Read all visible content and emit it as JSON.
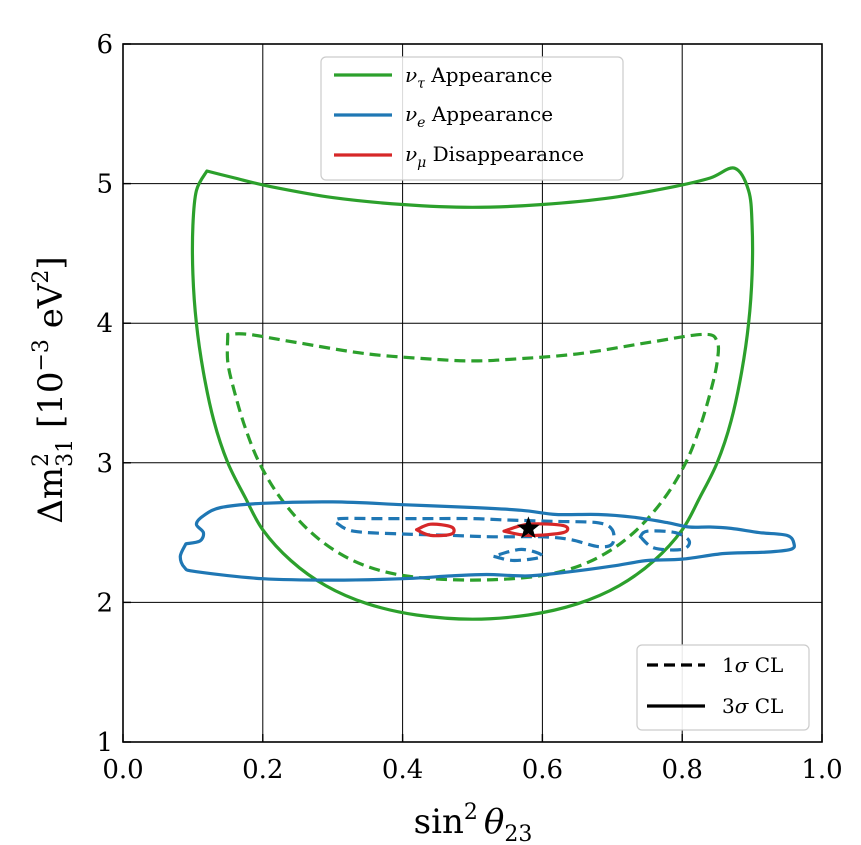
{
  "chart_data": {
    "type": "contour",
    "title": "",
    "xlabel_prefix": "sin",
    "xlabel_sup": "2",
    "xlabel_symbol": "θ",
    "xlabel_sub": "23",
    "ylabel_prefix": "Δm",
    "ylabel_sup": "2",
    "ylabel_sub": "31",
    "ylabel_unit_open": " [10",
    "ylabel_unit_exp": "−3",
    "ylabel_unit_mid": " eV",
    "ylabel_unit_sup": "2",
    "ylabel_unit_close": "]",
    "xlim": [
      0.0,
      1.0
    ],
    "ylim": [
      1,
      6
    ],
    "xticks": [
      0.0,
      0.2,
      0.4,
      0.6,
      0.8,
      1.0
    ],
    "xtick_labels": [
      "0.0",
      "0.2",
      "0.4",
      "0.6",
      "0.8",
      "1.0"
    ],
    "yticks": [
      1,
      2,
      3,
      4,
      5,
      6
    ],
    "ytick_labels": [
      "1",
      "2",
      "3",
      "4",
      "5",
      "6"
    ],
    "grid": true,
    "colors": {
      "tau": "#2ca02c",
      "e": "#1f77b4",
      "mu": "#d62728",
      "cl": "#000000"
    },
    "legend_samples": {
      "symbol_tau": "ν",
      "sub_tau": "τ",
      "label_tau": " Appearance",
      "symbol_e": "ν",
      "sub_e": "e",
      "label_e": " Appearance",
      "symbol_mu": "ν",
      "sub_mu": "μ",
      "label_mu": " Disappearance"
    },
    "legend_cl": {
      "one_num": "1",
      "one_sigma": "σ",
      "one_text": " CL",
      "three_num": "3",
      "three_sigma": "σ",
      "three_text": " CL"
    },
    "legend_samples_position": "top-center",
    "legend_cl_position": "bottom-right",
    "best_fit": {
      "x": 0.58,
      "y": 2.53,
      "marker": "star"
    },
    "series": [
      {
        "name": "nu_tau_3sigma",
        "color_key": "tau",
        "style": "solid",
        "points": [
          [
            0.12,
            5.09
          ],
          [
            0.105,
            4.95
          ],
          [
            0.1,
            4.7
          ],
          [
            0.1,
            4.35
          ],
          [
            0.105,
            4.0
          ],
          [
            0.115,
            3.65
          ],
          [
            0.13,
            3.3
          ],
          [
            0.15,
            3.0
          ],
          [
            0.175,
            2.75
          ],
          [
            0.2,
            2.52
          ],
          [
            0.24,
            2.3
          ],
          [
            0.29,
            2.12
          ],
          [
            0.35,
            1.99
          ],
          [
            0.42,
            1.91
          ],
          [
            0.5,
            1.88
          ],
          [
            0.58,
            1.91
          ],
          [
            0.65,
            1.99
          ],
          [
            0.71,
            2.12
          ],
          [
            0.76,
            2.3
          ],
          [
            0.8,
            2.52
          ],
          [
            0.825,
            2.75
          ],
          [
            0.85,
            3.0
          ],
          [
            0.87,
            3.3
          ],
          [
            0.885,
            3.65
          ],
          [
            0.895,
            4.0
          ],
          [
            0.9,
            4.35
          ],
          [
            0.9,
            4.7
          ],
          [
            0.895,
            4.95
          ],
          [
            0.875,
            5.11
          ],
          [
            0.84,
            5.04
          ],
          [
            0.79,
            4.98
          ],
          [
            0.7,
            4.9
          ],
          [
            0.6,
            4.85
          ],
          [
            0.5,
            4.83
          ],
          [
            0.4,
            4.85
          ],
          [
            0.3,
            4.9
          ],
          [
            0.21,
            4.98
          ],
          [
            0.16,
            5.04
          ],
          [
            0.12,
            5.09
          ]
        ]
      },
      {
        "name": "nu_tau_1sigma",
        "color_key": "tau",
        "style": "dashed",
        "points": [
          [
            0.15,
            3.92
          ],
          [
            0.15,
            3.72
          ],
          [
            0.16,
            3.5
          ],
          [
            0.175,
            3.25
          ],
          [
            0.195,
            3.0
          ],
          [
            0.225,
            2.75
          ],
          [
            0.265,
            2.52
          ],
          [
            0.31,
            2.35
          ],
          [
            0.36,
            2.24
          ],
          [
            0.42,
            2.18
          ],
          [
            0.5,
            2.16
          ],
          [
            0.58,
            2.18
          ],
          [
            0.64,
            2.24
          ],
          [
            0.69,
            2.35
          ],
          [
            0.735,
            2.52
          ],
          [
            0.775,
            2.75
          ],
          [
            0.805,
            3.0
          ],
          [
            0.825,
            3.25
          ],
          [
            0.84,
            3.5
          ],
          [
            0.85,
            3.72
          ],
          [
            0.85,
            3.87
          ],
          [
            0.83,
            3.92
          ],
          [
            0.75,
            3.86
          ],
          [
            0.65,
            3.78
          ],
          [
            0.55,
            3.74
          ],
          [
            0.5,
            3.73
          ],
          [
            0.45,
            3.74
          ],
          [
            0.35,
            3.78
          ],
          [
            0.25,
            3.86
          ],
          [
            0.18,
            3.92
          ],
          [
            0.15,
            3.92
          ]
        ]
      },
      {
        "name": "nu_e_3sigma",
        "color_key": "e",
        "style": "solid",
        "points": [
          [
            0.09,
            2.42
          ],
          [
            0.082,
            2.33
          ],
          [
            0.088,
            2.25
          ],
          [
            0.105,
            2.22
          ],
          [
            0.2,
            2.17
          ],
          [
            0.3,
            2.16
          ],
          [
            0.4,
            2.17
          ],
          [
            0.47,
            2.19
          ],
          [
            0.52,
            2.2
          ],
          [
            0.58,
            2.19
          ],
          [
            0.64,
            2.22
          ],
          [
            0.7,
            2.26
          ],
          [
            0.75,
            2.3
          ],
          [
            0.8,
            2.31
          ],
          [
            0.86,
            2.35
          ],
          [
            0.92,
            2.36
          ],
          [
            0.955,
            2.38
          ],
          [
            0.96,
            2.42
          ],
          [
            0.95,
            2.48
          ],
          [
            0.91,
            2.5
          ],
          [
            0.87,
            2.53
          ],
          [
            0.84,
            2.54
          ],
          [
            0.81,
            2.54
          ],
          [
            0.78,
            2.57
          ],
          [
            0.73,
            2.61
          ],
          [
            0.68,
            2.63
          ],
          [
            0.62,
            2.63
          ],
          [
            0.57,
            2.66
          ],
          [
            0.5,
            2.68
          ],
          [
            0.4,
            2.7
          ],
          [
            0.3,
            2.72
          ],
          [
            0.2,
            2.71
          ],
          [
            0.14,
            2.68
          ],
          [
            0.115,
            2.62
          ],
          [
            0.105,
            2.56
          ],
          [
            0.115,
            2.5
          ],
          [
            0.11,
            2.44
          ],
          [
            0.09,
            2.42
          ]
        ]
      },
      {
        "name": "nu_e_1sigma_main",
        "color_key": "e",
        "style": "dashed",
        "points": [
          [
            0.305,
            2.57
          ],
          [
            0.33,
            2.51
          ],
          [
            0.4,
            2.49
          ],
          [
            0.47,
            2.48
          ],
          [
            0.53,
            2.47
          ],
          [
            0.6,
            2.47
          ],
          [
            0.64,
            2.45
          ],
          [
            0.68,
            2.4
          ],
          [
            0.7,
            2.42
          ],
          [
            0.7,
            2.52
          ],
          [
            0.68,
            2.57
          ],
          [
            0.62,
            2.58
          ],
          [
            0.55,
            2.59
          ],
          [
            0.5,
            2.6
          ],
          [
            0.43,
            2.6
          ],
          [
            0.36,
            2.6
          ],
          [
            0.31,
            2.6
          ],
          [
            0.305,
            2.57
          ]
        ]
      },
      {
        "name": "nu_e_1sigma_lobe",
        "color_key": "e",
        "style": "dashed",
        "points": [
          [
            0.74,
            2.47
          ],
          [
            0.76,
            2.39
          ],
          [
            0.8,
            2.38
          ],
          [
            0.81,
            2.44
          ],
          [
            0.79,
            2.5
          ],
          [
            0.75,
            2.51
          ],
          [
            0.74,
            2.47
          ]
        ]
      },
      {
        "name": "nu_e_1sigma_small",
        "color_key": "e",
        "style": "dashed",
        "points": [
          [
            0.53,
            2.33
          ],
          [
            0.56,
            2.3
          ],
          [
            0.6,
            2.33
          ],
          [
            0.57,
            2.38
          ],
          [
            0.53,
            2.33
          ]
        ]
      },
      {
        "name": "nu_mu_1sigma_a",
        "color_key": "mu",
        "style": "solid",
        "points": [
          [
            0.42,
            2.52
          ],
          [
            0.44,
            2.48
          ],
          [
            0.47,
            2.49
          ],
          [
            0.47,
            2.54
          ],
          [
            0.44,
            2.56
          ],
          [
            0.42,
            2.52
          ]
        ]
      },
      {
        "name": "nu_mu_1sigma_b",
        "color_key": "mu",
        "style": "solid",
        "points": [
          [
            0.545,
            2.51
          ],
          [
            0.58,
            2.48
          ],
          [
            0.63,
            2.5
          ],
          [
            0.63,
            2.55
          ],
          [
            0.58,
            2.56
          ],
          [
            0.545,
            2.51
          ]
        ]
      }
    ]
  }
}
